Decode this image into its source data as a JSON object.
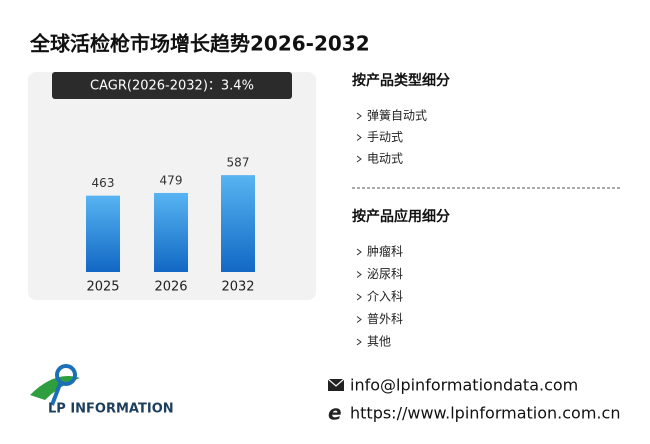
{
  "title": "全球活检枪市场增长趋势2026-2032",
  "cagr": "CAGR(2026-2032)：3.4%",
  "chart_data": {
    "type": "bar",
    "categories": [
      "2025",
      "2026",
      "2032"
    ],
    "values": [
      463,
      479,
      587
    ],
    "color": "#1e7fd8"
  },
  "sidebar": [
    {
      "heading": "按产品类型细分",
      "items": [
        "弹簧自动式",
        "手动式",
        "电动式"
      ]
    },
    {
      "heading": "按产品应用细分",
      "items": [
        "肿瘤科",
        "泌尿科",
        "介入科",
        "普外科",
        "其他"
      ]
    }
  ],
  "logo": "LP INFORMATION",
  "contact": {
    "email": "info@lpinformationdata.com",
    "website": "https://www.lpinformation.com.cn"
  }
}
